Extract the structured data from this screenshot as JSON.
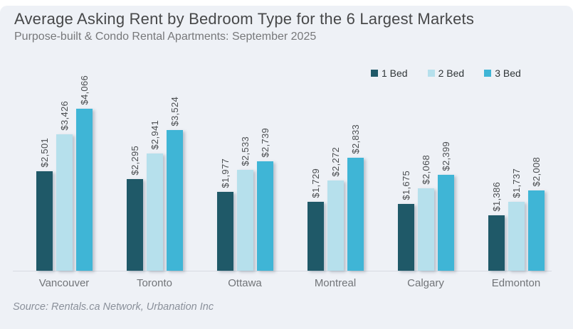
{
  "header": {
    "title": "Average Asking Rent by Bedroom Type for the 6 Largest Markets",
    "subtitle": "Purpose-built & Condo Rental Apartments: September 2025"
  },
  "legend": {
    "position": "top-right",
    "items": [
      {
        "label": "1 Bed",
        "color": "#1f5968"
      },
      {
        "label": "2 Bed",
        "color": "#b6e0ec"
      },
      {
        "label": "3 Bed",
        "color": "#3fb5d6"
      }
    ]
  },
  "chart_data": {
    "type": "bar",
    "title": "Average Asking Rent by Bedroom Type for the 6 Largest Markets",
    "subtitle": "Purpose-built & Condo Rental Apartments: September 2025",
    "categories": [
      "Vancouver",
      "Toronto",
      "Ottawa",
      "Montreal",
      "Calgary",
      "Edmonton"
    ],
    "series": [
      {
        "name": "1 Bed",
        "color": "#1f5968",
        "values": [
          2501,
          2295,
          1977,
          1729,
          1675,
          1386
        ],
        "labels": [
          "$2,501",
          "$2,295",
          "$1,977",
          "$1,729",
          "$1,675",
          "$1,386"
        ]
      },
      {
        "name": "2 Bed",
        "color": "#b6e0ec",
        "values": [
          3426,
          2941,
          2533,
          2272,
          2068,
          1737
        ],
        "labels": [
          "$3,426",
          "$2,941",
          "$2,533",
          "$2,272",
          "$2,068",
          "$1,737"
        ]
      },
      {
        "name": "3 Bed",
        "color": "#3fb5d6",
        "values": [
          4066,
          3524,
          2739,
          2833,
          2399,
          2008
        ],
        "labels": [
          "$4,066",
          "$3,524",
          "$2,739",
          "$2,833",
          "$2,399",
          "$2,008"
        ]
      }
    ],
    "xlabel": "",
    "ylabel": "",
    "ylim": [
      0,
      4300
    ],
    "grid": false,
    "value_labels": "rotated-90-above-bars",
    "legend_position": "top-right"
  },
  "footer": {
    "source": "Source: Rentals.ca Network, Urbanation Inc"
  },
  "colors": {
    "page": "#ffffff",
    "panel_background": "#eef1f6",
    "axis_line": "#d7dbe2",
    "title_text": "#474849",
    "subtitle_text": "#77787a",
    "value_label_text": "#4a4d50",
    "category_label_text": "#717478",
    "source_text": "#8a909a"
  }
}
